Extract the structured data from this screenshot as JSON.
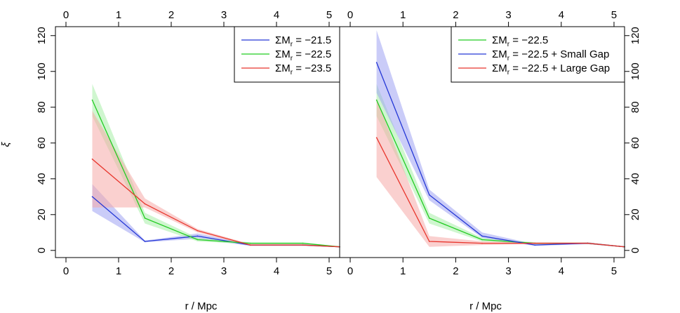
{
  "chart_data": [
    {
      "type": "line",
      "panel": "left",
      "xlabel": "r / Mpc",
      "ylabel": "ξ",
      "xlim": [
        -0.2,
        5.2
      ],
      "ylim": [
        -4,
        125
      ],
      "xticks": [
        "0",
        "1",
        "2",
        "3",
        "4",
        "5"
      ],
      "yticks": [
        "0",
        "20",
        "40",
        "60",
        "80",
        "100",
        "120"
      ],
      "legend_position": "top-right",
      "x": [
        0.5,
        1.5,
        2.5,
        3.5,
        4.5,
        5.2
      ],
      "series": [
        {
          "name": "ΣMr = −21.5",
          "label_main": "ΣM",
          "label_sub": "r",
          "label_rest": " = −21.5",
          "color": "#2437d6",
          "band": "#9ea3f2",
          "values": [
            30,
            5,
            8,
            3,
            3,
            2
          ],
          "lower": [
            22,
            4.5,
            6.5,
            2.5,
            2.5,
            1.8
          ],
          "upper": [
            37,
            5.5,
            9.5,
            3.5,
            3.5,
            2.2
          ]
        },
        {
          "name": "ΣMr = −22.5",
          "label_main": "ΣM",
          "label_sub": "r",
          "label_rest": " = −22.5",
          "color": "#22cc22",
          "band": "#a7eea7",
          "values": [
            84,
            18,
            6,
            4,
            4,
            2
          ],
          "lower": [
            75,
            15,
            5,
            3.5,
            3.5,
            1.8
          ],
          "upper": [
            93,
            21,
            7,
            4.5,
            4.5,
            2.2
          ]
        },
        {
          "name": "ΣMr = −23.5",
          "label_main": "ΣM",
          "label_sub": "r",
          "label_rest": " = −23.5",
          "color": "#e8352c",
          "band": "#f5aaa8",
          "values": [
            51,
            26,
            11,
            3,
            3,
            2
          ],
          "lower": [
            24,
            24,
            10,
            2.5,
            2.5,
            1.8
          ],
          "upper": [
            78,
            29,
            12,
            3.5,
            3.5,
            2.2
          ]
        }
      ]
    },
    {
      "type": "line",
      "panel": "right",
      "xlabel": "r / Mpc",
      "ylabel": "",
      "xlim": [
        -0.2,
        5.2
      ],
      "ylim": [
        -4,
        125
      ],
      "xticks": [
        "0",
        "1",
        "2",
        "3",
        "4",
        "5"
      ],
      "yticks": [
        "0",
        "20",
        "40",
        "60",
        "80",
        "100",
        "120"
      ],
      "legend_position": "top-right",
      "x": [
        0.5,
        1.5,
        2.5,
        3.5,
        4.5,
        5.2
      ],
      "series": [
        {
          "name": "ΣMr = −22.5",
          "label_main": "ΣM",
          "label_sub": "r",
          "label_rest": " = −22.5",
          "color": "#22cc22",
          "band": "#a7eea7",
          "values": [
            84,
            18,
            6,
            4,
            4,
            2
          ],
          "lower": [
            75,
            15,
            5,
            3.5,
            3.5,
            1.8
          ],
          "upper": [
            93,
            21,
            7,
            4.5,
            4.5,
            2.2
          ]
        },
        {
          "name": "ΣMr = −22.5 + Small Gap",
          "label_main": "ΣM",
          "label_sub": "r",
          "label_rest": " = −22.5 + Small Gap",
          "color": "#2437d6",
          "band": "#9ea3f2",
          "values": [
            105,
            31,
            8,
            3,
            4,
            2
          ],
          "lower": [
            88,
            28,
            7,
            2.5,
            3.5,
            1.8
          ],
          "upper": [
            123,
            34,
            10,
            3.5,
            4.5,
            2.2
          ]
        },
        {
          "name": "ΣMr = −22.5 + Large Gap",
          "label_main": "ΣM",
          "label_sub": "r",
          "label_rest": " = −22.5 + Large Gap",
          "color": "#e8352c",
          "band": "#f5aaa8",
          "values": [
            63,
            5,
            4,
            4,
            4,
            2
          ],
          "lower": [
            41,
            2,
            3,
            3.5,
            3.5,
            1.8
          ],
          "upper": [
            85,
            8,
            5,
            4.5,
            4.5,
            2.2
          ]
        }
      ]
    }
  ]
}
